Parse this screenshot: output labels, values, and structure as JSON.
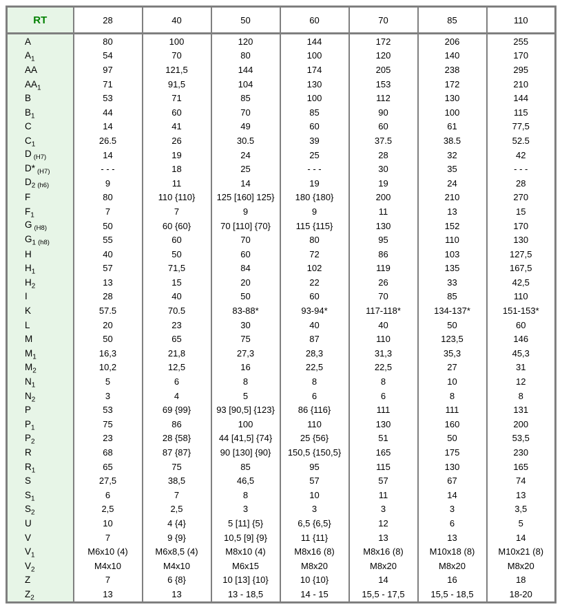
{
  "colors": {
    "border_gray": "#7f7f7f",
    "green_cell_bg": "#e7f5e7",
    "rt_text_green": "#008000",
    "body_text": "#000000"
  },
  "table": {
    "header": {
      "label": "RT",
      "columns": [
        "28",
        "40",
        "50",
        "60",
        "70",
        "85",
        "110"
      ]
    },
    "rows": [
      {
        "base": "A",
        "sub": "",
        "note": "",
        "values": [
          "80",
          "100",
          "120",
          "144",
          "172",
          "206",
          "255"
        ]
      },
      {
        "base": "A",
        "sub": "1",
        "note": "",
        "values": [
          "54",
          "70",
          "80",
          "100",
          "120",
          "140",
          "170"
        ]
      },
      {
        "base": "AA",
        "sub": "",
        "note": "",
        "values": [
          "97",
          "121,5",
          "144",
          "174",
          "205",
          "238",
          "295"
        ]
      },
      {
        "base": "AA",
        "sub": "1",
        "note": "",
        "values": [
          "71",
          "91,5",
          "104",
          "130",
          "153",
          "172",
          "210"
        ]
      },
      {
        "base": "B",
        "sub": "",
        "note": "",
        "values": [
          "53",
          "71",
          "85",
          "100",
          "112",
          "130",
          "144"
        ]
      },
      {
        "base": "B",
        "sub": "1",
        "note": "",
        "values": [
          "44",
          "60",
          "70",
          "85",
          "90",
          "100",
          "115"
        ]
      },
      {
        "base": "C",
        "sub": "",
        "note": "",
        "values": [
          "14",
          "41",
          "49",
          "60",
          "60",
          "61",
          "77,5"
        ]
      },
      {
        "base": "C",
        "sub": "1",
        "note": "",
        "values": [
          "26.5",
          "26",
          "30.5",
          "39",
          "37.5",
          "38.5",
          "52.5"
        ]
      },
      {
        "base": "D",
        "sub": "",
        "note": "(H7)",
        "values": [
          "14",
          "19",
          "24",
          "25",
          "28",
          "32",
          "42"
        ]
      },
      {
        "base": "D*",
        "sub": "",
        "note": "(H7)",
        "values": [
          "- - -",
          "18",
          "25",
          "- - -",
          "30",
          "35",
          "- - -"
        ]
      },
      {
        "base": "D",
        "sub": "2",
        "note": "(h6)",
        "values": [
          "9",
          "11",
          "14",
          "19",
          "19",
          "24",
          "28"
        ]
      },
      {
        "base": "F",
        "sub": "",
        "note": "",
        "values": [
          "80",
          "110 {110}",
          "125 [160] 125}",
          "180 {180}",
          "200",
          "210",
          "270"
        ]
      },
      {
        "base": "F",
        "sub": "1",
        "note": "",
        "values": [
          "7",
          "7",
          "9",
          "9",
          "11",
          "13",
          "15"
        ]
      },
      {
        "base": "G",
        "sub": "",
        "note": "(H8)",
        "values": [
          "50",
          "60 {60}",
          "70 [110] {70}",
          "115 {115}",
          "130",
          "152",
          "170"
        ]
      },
      {
        "base": "G",
        "sub": "1",
        "note": "(h8)",
        "values": [
          "55",
          "60",
          "70",
          "80",
          "95",
          "110",
          "130"
        ]
      },
      {
        "base": "H",
        "sub": "",
        "note": "",
        "values": [
          "40",
          "50",
          "60",
          "72",
          "86",
          "103",
          "127,5"
        ]
      },
      {
        "base": "H",
        "sub": "1",
        "note": "",
        "values": [
          "57",
          "71,5",
          "84",
          "102",
          "119",
          "135",
          "167,5"
        ]
      },
      {
        "base": "H",
        "sub": "2",
        "note": "",
        "values": [
          "13",
          "15",
          "20",
          "22",
          "26",
          "33",
          "42,5"
        ]
      },
      {
        "base": "I",
        "sub": "",
        "note": "",
        "values": [
          "28",
          "40",
          "50",
          "60",
          "70",
          "85",
          "110"
        ]
      },
      {
        "base": "K",
        "sub": "",
        "note": "",
        "values": [
          "57.5",
          "70.5",
          "83-88*",
          "93-94*",
          "117-118*",
          "134-137*",
          "151-153*"
        ]
      },
      {
        "base": "L",
        "sub": "",
        "note": "",
        "values": [
          "20",
          "23",
          "30",
          "40",
          "40",
          "50",
          "60"
        ]
      },
      {
        "base": "M",
        "sub": "",
        "note": "",
        "values": [
          "50",
          "65",
          "75",
          "87",
          "110",
          "123,5",
          "146"
        ]
      },
      {
        "base": "M",
        "sub": "1",
        "note": "",
        "values": [
          "16,3",
          "21,8",
          "27,3",
          "28,3",
          "31,3",
          "35,3",
          "45,3"
        ]
      },
      {
        "base": "M",
        "sub": "2",
        "note": "",
        "values": [
          "10,2",
          "12,5",
          "16",
          "22,5",
          "22,5",
          "27",
          "31"
        ]
      },
      {
        "base": "N",
        "sub": "1",
        "note": "",
        "values": [
          "5",
          "6",
          "8",
          "8",
          "8",
          "10",
          "12"
        ]
      },
      {
        "base": "N",
        "sub": "2",
        "note": "",
        "values": [
          "3",
          "4",
          "5",
          "6",
          "6",
          "8",
          "8"
        ]
      },
      {
        "base": "P",
        "sub": "",
        "note": "",
        "values": [
          "53",
          "69 {99}",
          "93 [90,5] {123}",
          "86 {116}",
          "111",
          "111",
          "131"
        ]
      },
      {
        "base": "P",
        "sub": "1",
        "note": "",
        "values": [
          "75",
          "86",
          "100",
          "110",
          "130",
          "160",
          "200"
        ]
      },
      {
        "base": "P",
        "sub": "2",
        "note": "",
        "values": [
          "23",
          "28 {58}",
          "44 [41,5] {74}",
          "25 {56}",
          "51",
          "50",
          "53,5"
        ]
      },
      {
        "base": "R",
        "sub": "",
        "note": "",
        "values": [
          "68",
          "87 {87}",
          "90 [130] {90}",
          "150,5 {150,5}",
          "165",
          "175",
          "230"
        ]
      },
      {
        "base": "R",
        "sub": "1",
        "note": "",
        "values": [
          "65",
          "75",
          "85",
          "95",
          "115",
          "130",
          "165"
        ]
      },
      {
        "base": "S",
        "sub": "",
        "note": "",
        "values": [
          "27,5",
          "38,5",
          "46,5",
          "57",
          "57",
          "67",
          "74"
        ]
      },
      {
        "base": "S",
        "sub": "1",
        "note": "",
        "values": [
          "6",
          "7",
          "8",
          "10",
          "11",
          "14",
          "13"
        ]
      },
      {
        "base": "S",
        "sub": "2",
        "note": "",
        "values": [
          "2,5",
          "2,5",
          "3",
          "3",
          "3",
          "3",
          "3,5"
        ]
      },
      {
        "base": "U",
        "sub": "",
        "note": "",
        "values": [
          "10",
          "4 {4}",
          "5 [11] {5}",
          "6,5 {6,5}",
          "12",
          "6",
          "5"
        ]
      },
      {
        "base": "V",
        "sub": "",
        "note": "",
        "values": [
          "7",
          "9 {9}",
          "10,5 [9] {9}",
          "11 {11}",
          "13",
          "13",
          "14"
        ]
      },
      {
        "base": "V",
        "sub": "1",
        "note": "",
        "values": [
          "M6x10 (4)",
          "M6x8,5 (4)",
          "M8x10 (4)",
          "M8x16 (8)",
          "M8x16 (8)",
          "M10x18 (8)",
          "M10x21 (8)"
        ]
      },
      {
        "base": "V",
        "sub": "2",
        "note": "",
        "values": [
          "M4x10",
          "M4x10",
          "M6x15",
          "M8x20",
          "M8x20",
          "M8x20",
          "M8x20"
        ]
      },
      {
        "base": "Z",
        "sub": "",
        "note": "",
        "values": [
          "7",
          "6 {8}",
          "10 [13] {10}",
          "10 {10}",
          "14",
          "16",
          "18"
        ]
      },
      {
        "base": "Z",
        "sub": "2",
        "note": "",
        "values": [
          "13",
          "13",
          "13 - 18,5",
          "14 - 15",
          "15,5 - 17,5",
          "15,5 - 18,5",
          "18-20"
        ]
      }
    ]
  }
}
